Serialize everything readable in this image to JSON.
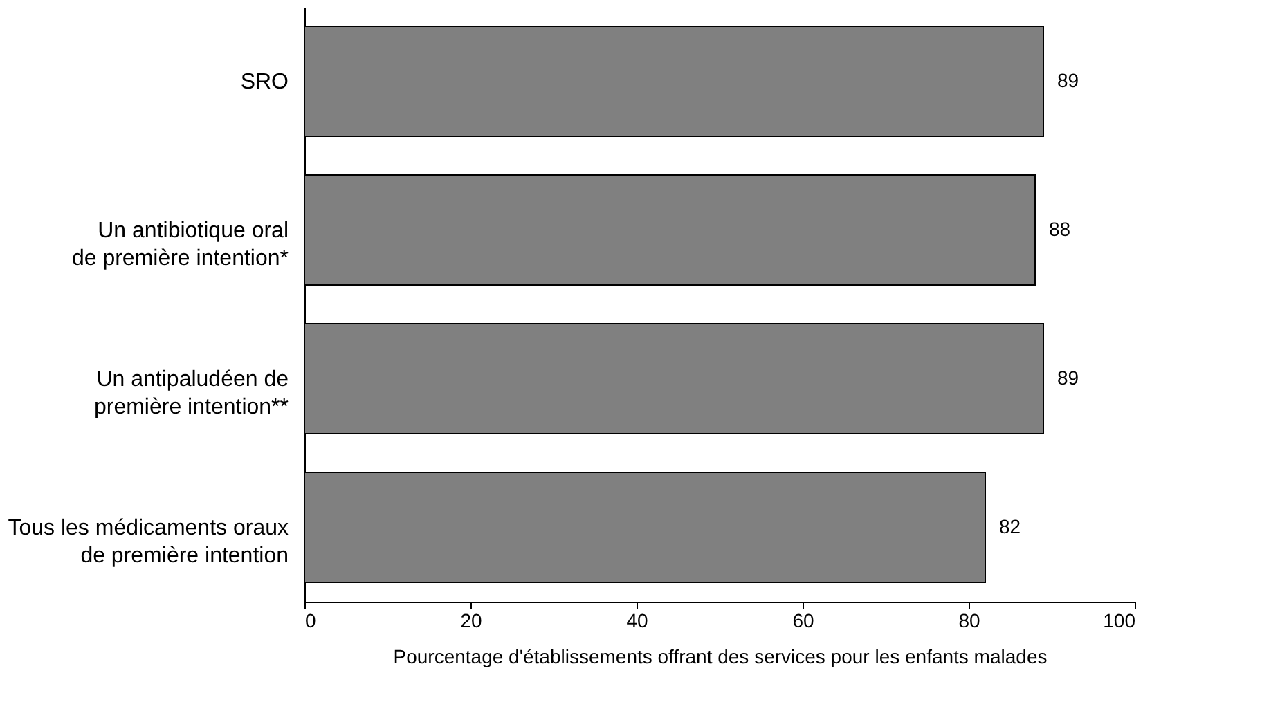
{
  "chart_data": {
    "type": "bar",
    "orientation": "horizontal",
    "xlabel": "Pourcentage d'établissements offrant des services pour les enfants malades",
    "categories": [
      "SRO",
      "Un antibiotique oral\nde première intention*",
      "Un antipaludéen de\npremière intention**",
      "Tous les médicaments oraux\nde première intention"
    ],
    "values": [
      89,
      88,
      89,
      82
    ],
    "color": "#808080",
    "xlim": [
      0,
      100
    ],
    "xticks": [
      0,
      20,
      40,
      60,
      80,
      100
    ],
    "grid": false,
    "data_labels": true
  }
}
